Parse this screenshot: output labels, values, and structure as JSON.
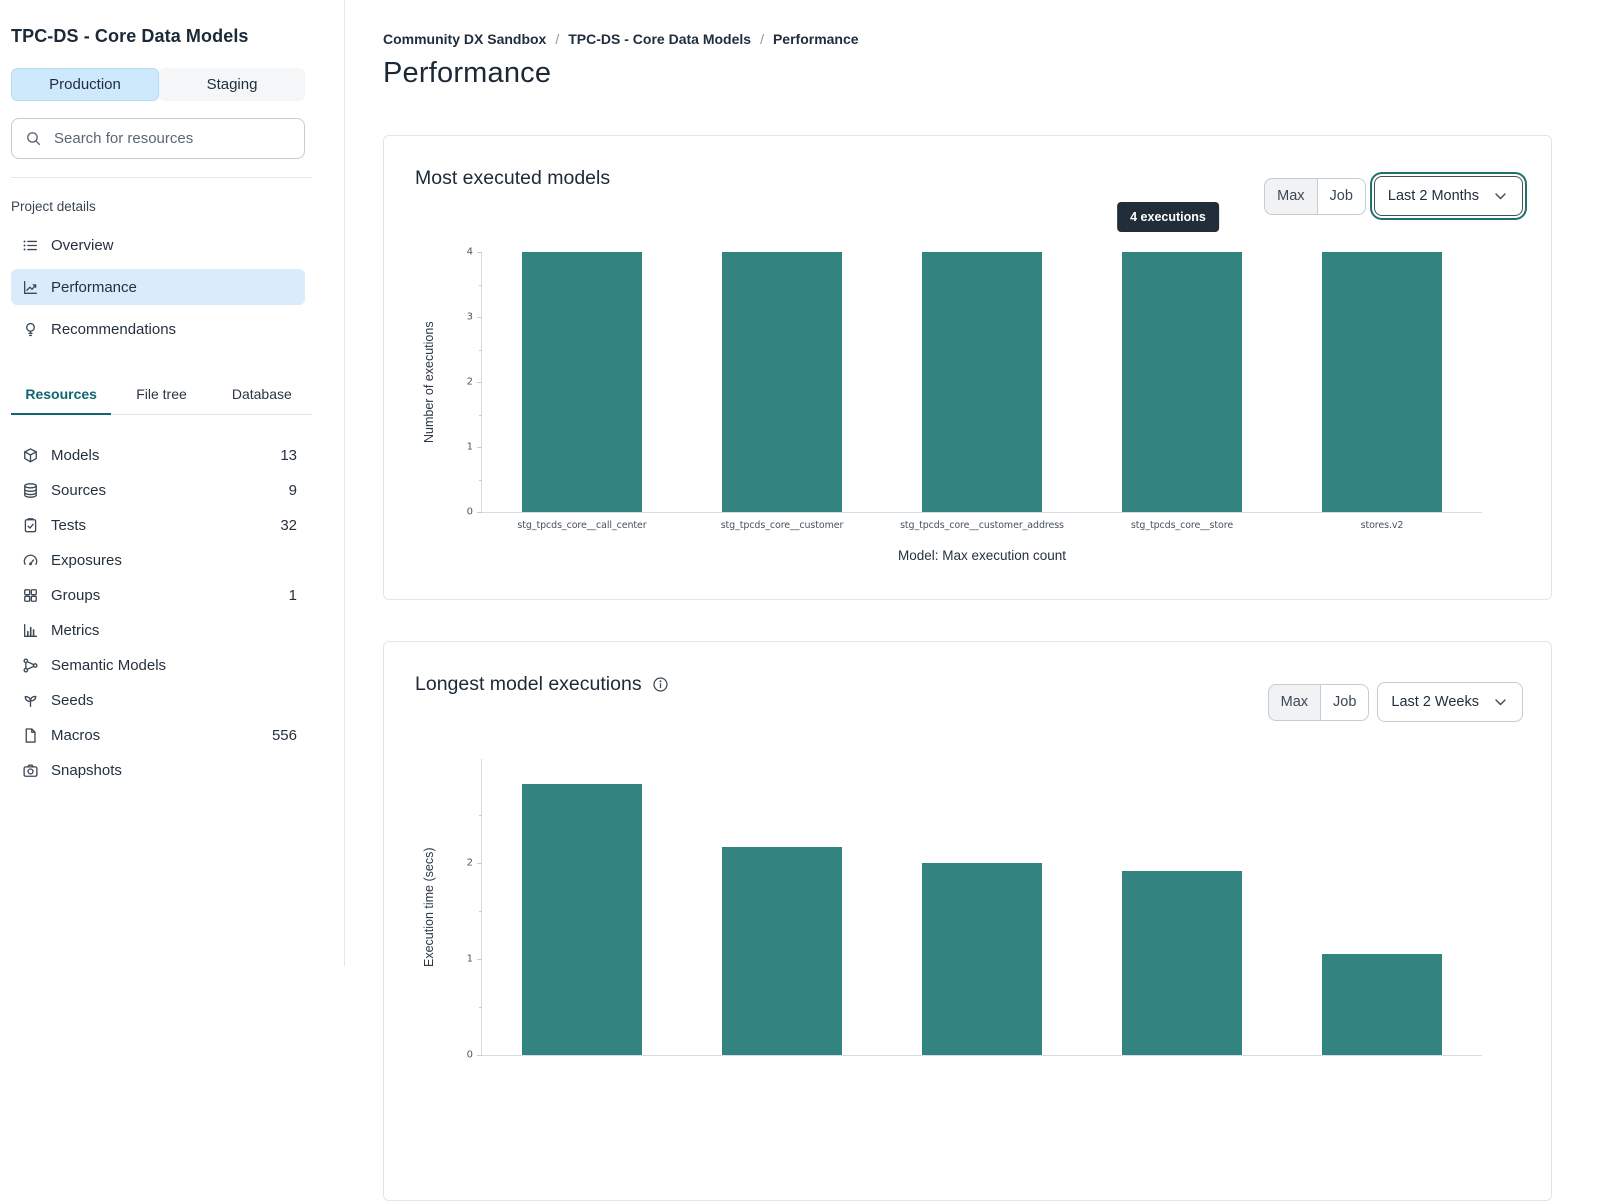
{
  "sidebar": {
    "title": "TPC-DS - Core Data Models",
    "environments": [
      {
        "label": "Production",
        "active": true
      },
      {
        "label": "Staging",
        "active": false
      }
    ],
    "search": {
      "placeholder": "Search for resources",
      "icon": "search-icon"
    },
    "project_details_label": "Project details",
    "nav": [
      {
        "label": "Overview",
        "icon": "list",
        "active": false
      },
      {
        "label": "Performance",
        "icon": "performance",
        "active": true
      },
      {
        "label": "Recommendations",
        "icon": "lightbulb",
        "active": false
      }
    ],
    "tabs": [
      {
        "label": "Resources",
        "active": true
      },
      {
        "label": "File tree",
        "active": false
      },
      {
        "label": "Database",
        "active": false
      }
    ],
    "resources": [
      {
        "label": "Models",
        "icon": "cube",
        "count": "13"
      },
      {
        "label": "Sources",
        "icon": "database",
        "count": "9"
      },
      {
        "label": "Tests",
        "icon": "clipboard",
        "count": "32"
      },
      {
        "label": "Exposures",
        "icon": "gauge",
        "count": null
      },
      {
        "label": "Groups",
        "icon": "grid",
        "count": "1"
      },
      {
        "label": "Metrics",
        "icon": "bar-chart",
        "count": null
      },
      {
        "label": "Semantic Models",
        "icon": "network",
        "count": null
      },
      {
        "label": "Seeds",
        "icon": "sprout",
        "count": null
      },
      {
        "label": "Macros",
        "icon": "document",
        "count": "556"
      },
      {
        "label": "Snapshots",
        "icon": "camera",
        "count": null
      }
    ]
  },
  "main": {
    "breadcrumb": [
      "Community DX Sandbox",
      "TPC-DS - Core Data Models",
      "Performance"
    ],
    "breadcrumb_separator": "/",
    "page_title": "Performance"
  },
  "chart_data": [
    {
      "type": "bar",
      "title": "Most executed models",
      "categories": [
        "stg_tpcds_core__call_center",
        "stg_tpcds_core__customer",
        "stg_tpcds_core__customer_address",
        "stg_tpcds_core__store",
        "stores.v2"
      ],
      "values": [
        4,
        4,
        4,
        4,
        4
      ],
      "xlabel": "Model: Max execution count",
      "ylabel": "Number of executions",
      "ylim": [
        0,
        4
      ],
      "yticks": [
        0,
        1,
        2,
        3,
        4
      ],
      "bar_color": "#338381",
      "grid": false,
      "tooltip": "4 executions",
      "controls": {
        "aggregation": [
          "Max",
          "Job"
        ],
        "selected_range": "Last 2 Months"
      }
    },
    {
      "type": "bar",
      "title": "Longest model executions",
      "categories": [],
      "values": [
        2.82,
        2.16,
        2.0,
        1.91,
        1.05
      ],
      "xlabel": "",
      "ylabel": "Execution time (secs)",
      "ylim": [
        0,
        3.08
      ],
      "yticks": [
        0,
        1,
        2
      ],
      "bar_color": "#338381",
      "grid": false,
      "controls": {
        "aggregation": [
          "Max",
          "Job"
        ],
        "selected_range": "Last 2 Weeks"
      }
    }
  ]
}
